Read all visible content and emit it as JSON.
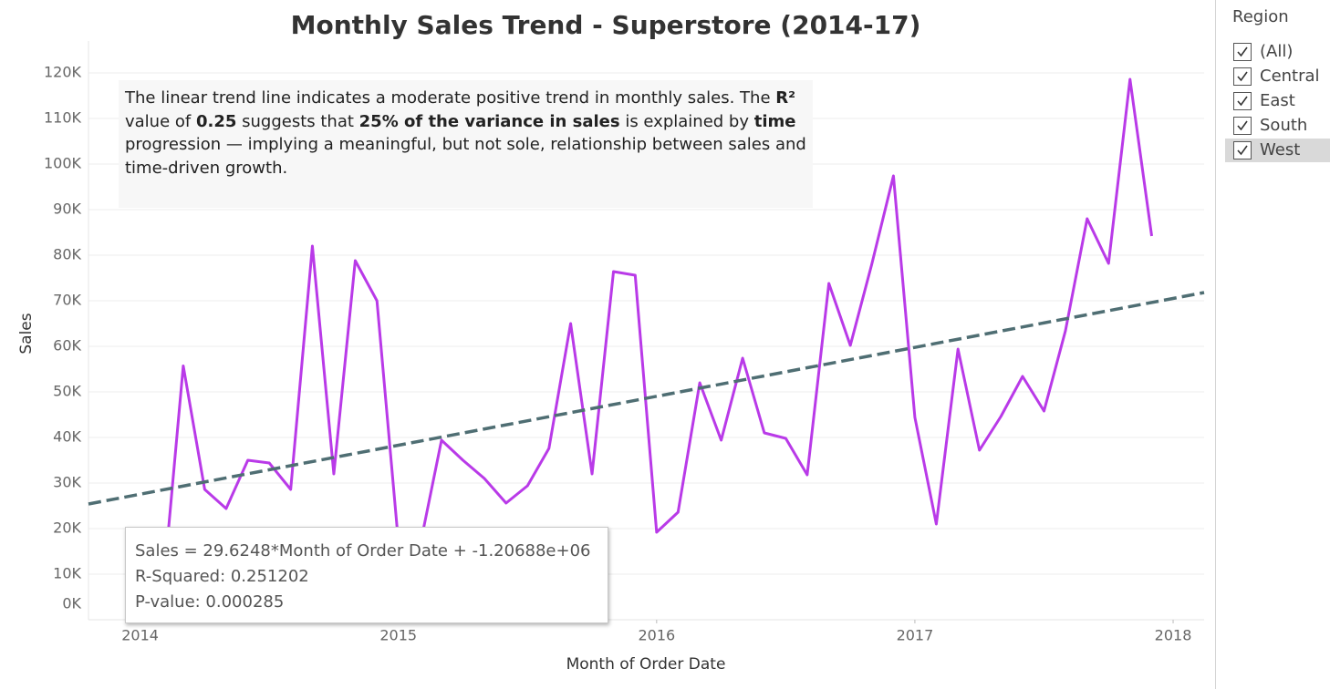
{
  "chart_data": {
    "type": "line",
    "title": "Monthly Sales Trend - Superstore (2014-17)",
    "x_label": "Month of Order Date",
    "y_label": "Sales",
    "x": [
      2014,
      2014.083,
      2014.167,
      2014.25,
      2014.333,
      2014.417,
      2014.5,
      2014.583,
      2014.667,
      2014.75,
      2014.833,
      2014.917,
      2015,
      2015.083,
      2015.167,
      2015.25,
      2015.333,
      2015.417,
      2015.5,
      2015.583,
      2015.667,
      2015.75,
      2015.833,
      2015.917,
      2016,
      2016.083,
      2016.167,
      2016.25,
      2016.333,
      2016.417,
      2016.5,
      2016.583,
      2016.667,
      2016.75,
      2016.833,
      2016.917,
      2017,
      2017.083,
      2017.167,
      2017.25,
      2017.333,
      2017.417,
      2017.5,
      2017.583,
      2017.667,
      2017.75,
      2017.833,
      2017.917
    ],
    "series": [
      {
        "color": "#b93ae8",
        "values": [
          14500,
          3000,
          55700,
          28600,
          24400,
          35000,
          34400,
          28600,
          82000,
          32000,
          78800,
          70000,
          17000,
          16000,
          39400,
          35000,
          31000,
          25600,
          29400,
          37600,
          65000,
          32000,
          76400,
          75600,
          19200,
          23600,
          52000,
          39400,
          57400,
          41000,
          39800,
          31800,
          73800,
          60200,
          78000,
          97400,
          44400,
          21000,
          59400,
          37200,
          44600,
          53400,
          45800,
          63400,
          88000,
          78200,
          118600,
          84200
        ]
      }
    ],
    "trend": {
      "color": "#4f6e73",
      "x": [
        2013.8,
        2018.12
      ],
      "values": [
        25400,
        71800
      ]
    },
    "xlim": [
      2013.8,
      2018.12
    ],
    "xticks": [
      2014,
      2015,
      2016,
      2017,
      2018
    ],
    "ylim": [
      0,
      125000
    ],
    "yticks": [
      {
        "value": 0,
        "label": "0K"
      },
      {
        "value": 10000,
        "label": "10K"
      },
      {
        "value": 20000,
        "label": "20K"
      },
      {
        "value": 30000,
        "label": "30K"
      },
      {
        "value": 40000,
        "label": "40K"
      },
      {
        "value": 50000,
        "label": "50K"
      },
      {
        "value": 60000,
        "label": "60K"
      },
      {
        "value": 70000,
        "label": "70K"
      },
      {
        "value": 80000,
        "label": "80K"
      },
      {
        "value": 90000,
        "label": "90K"
      },
      {
        "value": 100000,
        "label": "100K"
      },
      {
        "value": 110000,
        "label": "110K"
      },
      {
        "value": 120000,
        "label": "120K"
      }
    ],
    "grid": true,
    "annotation": [
      {
        "text": "The linear trend line indicates a moderate positive trend in monthly sales. The ",
        "bold": false
      },
      {
        "text": "R²",
        "bold": true
      },
      {
        "text": " value of ",
        "bold": false
      },
      {
        "text": "0.25",
        "bold": true
      },
      {
        "text": " suggests that ",
        "bold": false
      },
      {
        "text": "25% of the variance in sales",
        "bold": true
      },
      {
        "text": " is explained by ",
        "bold": false
      },
      {
        "text": "time",
        "bold": true
      },
      {
        "text": " progression — implying a meaningful, but not sole, relationship between sales and time-driven growth.",
        "bold": false
      }
    ],
    "tooltip": [
      "Sales = 29.6248*Month of Order Date + -1.20688e+06",
      "R-Squared: 0.251202",
      "P-value: 0.000285"
    ]
  },
  "filter": {
    "title": "Region",
    "items": [
      {
        "label": "(All)",
        "checked": true
      },
      {
        "label": "Central",
        "checked": true
      },
      {
        "label": "East",
        "checked": true
      },
      {
        "label": "South",
        "checked": true
      },
      {
        "label": "West",
        "checked": true
      }
    ]
  }
}
